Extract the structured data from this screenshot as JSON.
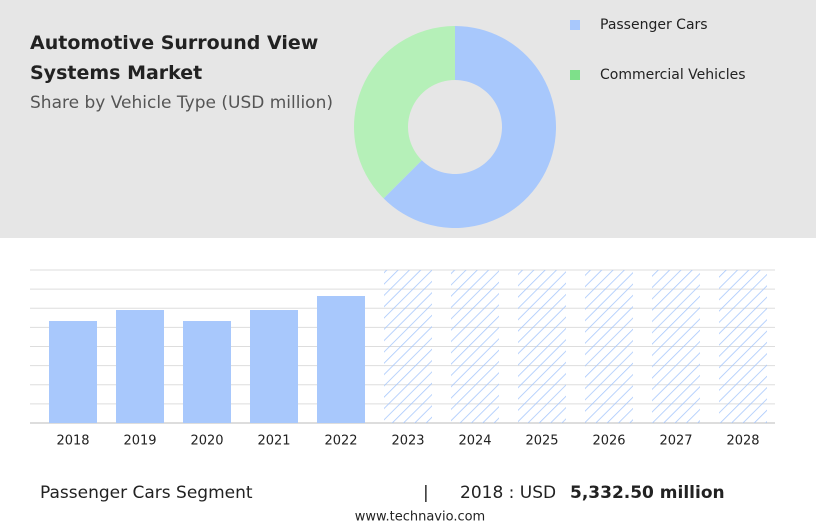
{
  "chart_data": [
    {
      "type": "pie",
      "title": "Automotive Surround View Systems Market",
      "subtitle": "Share by Vehicle Type (USD million)",
      "categories": [
        "Passenger Cars",
        "Commercial Vehicles"
      ],
      "values": [
        62.5,
        37.5
      ],
      "colors": [
        "#a8c8fc",
        "#b5f0b8"
      ],
      "legend_colors": [
        "#a8c8fc",
        "#7ee08a"
      ],
      "donut": true
    },
    {
      "type": "bar",
      "categories": [
        "2018",
        "2019",
        "2020",
        "2021",
        "2022",
        "2023",
        "2024",
        "2025",
        "2026",
        "2027",
        "2028"
      ],
      "values": [
        5332.5,
        5908,
        5332.5,
        5908,
        6640,
        null,
        null,
        null,
        null,
        null,
        null
      ],
      "color": "#a8c8fc",
      "ylim": [
        0,
        8000
      ],
      "grid": true
    }
  ],
  "footer": {
    "segment": "Passenger Cars Segment",
    "separator": "|",
    "label": "2018 : USD",
    "value": "5,332.50 million",
    "source": "www.technavio.com"
  }
}
